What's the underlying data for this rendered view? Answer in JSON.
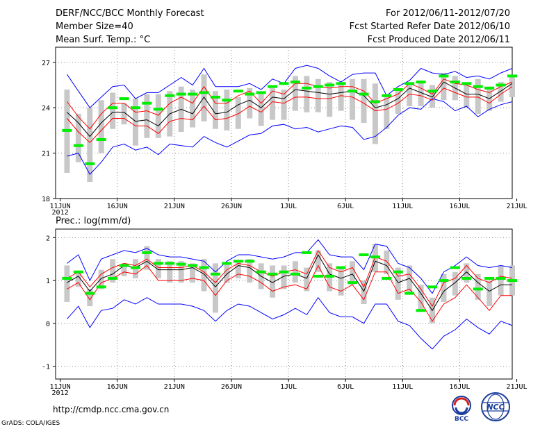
{
  "header": {
    "title": "DERF/NCC/BCC Monthly Forecast",
    "member_size": "Member Size=40",
    "variable": "Mean Surf. Temp.: °C",
    "period": "For 2012/06/11-2012/07/20",
    "start_date": "Fcst Started Refer Date 2012/06/10",
    "produced_date": "Fcst Produced Date 2012/06/11"
  },
  "footer": {
    "url": "http://cmdp.ncc.cma.gov.cn",
    "grads": "GrADS: COLA/IGES",
    "logo_left_text": "BCC",
    "logo_right_text": "NCC"
  },
  "colors": {
    "envelope": "#0000ff",
    "spread": "#ff0000",
    "mean": "#000000",
    "box": "#c8c8c8",
    "obs": "#00ee00",
    "grid": "#888888"
  },
  "chart_data": [
    {
      "type": "line",
      "title": "Mean Surf. Temp.: °C",
      "x_tick_labels": [
        "11JUN",
        "16JUN",
        "21JUN",
        "26JUN",
        "1JUL",
        "6JUL",
        "11JUL",
        "16JUL",
        "21JUL"
      ],
      "x_year_label": "2012",
      "ylim": [
        18,
        28
      ],
      "yticks": [
        18,
        21,
        24,
        27
      ],
      "days": 40,
      "series": [
        {
          "name": "max",
          "values": [
            26.2,
            25.1,
            24.0,
            24.7,
            25.4,
            25.5,
            24.6,
            25.0,
            25.0,
            25.5,
            26.0,
            25.5,
            26.6,
            25.4,
            25.4,
            25.4,
            25.6,
            25.2,
            25.9,
            25.6,
            26.6,
            26.8,
            26.6,
            26.1,
            25.7,
            26.2,
            26.3,
            26.3,
            24.8,
            25.4,
            25.8,
            26.6,
            26.3,
            26.2,
            26.4,
            26.0,
            26.1,
            25.9,
            26.3,
            26.6
          ]
        },
        {
          "name": "upper",
          "values": [
            24.4,
            23.4,
            22.6,
            23.6,
            24.3,
            24.3,
            23.7,
            23.8,
            23.5,
            24.3,
            24.7,
            24.3,
            25.4,
            24.3,
            24.3,
            24.8,
            25.1,
            24.3,
            25.1,
            24.9,
            25.6,
            25.6,
            25.4,
            25.3,
            25.4,
            25.4,
            25.1,
            24.3,
            24.6,
            24.9,
            25.6,
            25.3,
            24.9,
            25.9,
            25.6,
            25.5,
            25.2,
            25.0,
            25.4,
            25.7
          ]
        },
        {
          "name": "mean",
          "values": [
            23.7,
            23.0,
            22.1,
            23.0,
            23.7,
            23.7,
            23.1,
            23.2,
            22.8,
            23.6,
            23.9,
            23.6,
            24.7,
            23.6,
            23.7,
            24.2,
            24.5,
            24.0,
            24.7,
            24.6,
            25.2,
            25.1,
            25.0,
            24.9,
            25.0,
            25.1,
            24.8,
            24.0,
            24.2,
            24.6,
            25.3,
            25.0,
            24.7,
            25.7,
            25.3,
            24.9,
            24.9,
            24.6,
            25.1,
            25.6
          ]
        },
        {
          "name": "lower",
          "values": [
            23.3,
            22.4,
            21.7,
            22.5,
            23.3,
            23.3,
            22.8,
            22.8,
            22.3,
            23.1,
            23.3,
            23.2,
            24.1,
            23.2,
            23.3,
            23.6,
            24.1,
            23.7,
            24.4,
            24.3,
            24.7,
            24.7,
            24.6,
            24.6,
            24.8,
            24.7,
            24.3,
            23.8,
            23.9,
            24.3,
            24.9,
            24.8,
            24.5,
            25.3,
            25.0,
            24.7,
            24.7,
            24.3,
            24.9,
            25.4
          ]
        },
        {
          "name": "min",
          "values": [
            20.8,
            21.0,
            19.6,
            20.4,
            21.4,
            21.6,
            21.2,
            21.4,
            20.9,
            21.6,
            21.5,
            21.4,
            22.1,
            21.7,
            21.4,
            21.8,
            22.2,
            22.3,
            22.8,
            22.9,
            22.6,
            22.7,
            22.4,
            22.6,
            22.8,
            22.7,
            21.9,
            22.1,
            22.7,
            23.5,
            24.0,
            23.9,
            24.6,
            24.4,
            23.8,
            24.1,
            23.4,
            23.9,
            24.2,
            24.4
          ]
        },
        {
          "name": "box_top",
          "values": [
            25.2,
            23.6,
            24.0,
            24.5,
            25.0,
            24.3,
            24.6,
            24.9,
            24.9,
            25.1,
            25.4,
            25.2,
            26.2,
            25.1,
            25.2,
            24.7,
            25.3,
            24.9,
            25.3,
            25.2,
            26.1,
            26.1,
            25.9,
            25.7,
            25.7,
            25.9,
            25.9,
            25.6,
            24.8,
            25.1,
            25.6,
            25.8,
            25.5,
            26.3,
            26.1,
            25.5,
            25.9,
            25.4,
            25.7,
            26.0
          ]
        },
        {
          "name": "box_bottom",
          "values": [
            19.7,
            20.4,
            19.1,
            21.0,
            22.6,
            22.9,
            21.5,
            22.0,
            22.0,
            22.1,
            22.4,
            22.7,
            23.1,
            22.6,
            22.5,
            22.6,
            23.3,
            22.8,
            23.2,
            23.2,
            23.8,
            23.7,
            23.7,
            23.4,
            23.8,
            23.2,
            23.0,
            21.6,
            22.6,
            23.6,
            24.1,
            24.1,
            24.0,
            24.5,
            24.5,
            24.0,
            23.6,
            23.8,
            24.4,
            24.7
          ]
        },
        {
          "name": "observed",
          "values": [
            22.5,
            21.5,
            20.3,
            21.9,
            24.0,
            24.6,
            24.0,
            24.3,
            23.9,
            24.8,
            24.9,
            24.9,
            25.0,
            24.7,
            24.5,
            25.1,
            24.9,
            25.0,
            25.4,
            25.6,
            25.7,
            25.3,
            25.4,
            25.5,
            25.6,
            25.1,
            24.9,
            24.4,
            24.8,
            25.2,
            25.6,
            25.7,
            25.1,
            26.1,
            25.7,
            25.6,
            25.4,
            25.3,
            25.5,
            26.1
          ]
        }
      ]
    },
    {
      "type": "line",
      "title": "Prec.: log(mm/d)",
      "x_tick_labels": [
        "11JUN",
        "16JUN",
        "21JUN",
        "26JUN",
        "1JUL",
        "6JUL",
        "11JUL",
        "16JUL",
        "21JUL"
      ],
      "x_year_label": "2012",
      "ylim": [
        -1.3,
        2.2
      ],
      "yticks": [
        -1,
        0,
        1,
        2
      ],
      "days": 40,
      "series": [
        {
          "name": "max",
          "values": [
            1.4,
            1.6,
            1.0,
            1.5,
            1.6,
            1.7,
            1.65,
            1.75,
            1.6,
            1.55,
            1.55,
            1.5,
            1.45,
            1.2,
            1.45,
            1.6,
            1.6,
            1.55,
            1.5,
            1.55,
            1.65,
            1.65,
            1.95,
            1.6,
            1.55,
            1.55,
            1.25,
            1.85,
            1.8,
            1.4,
            1.3,
            1.05,
            0.7,
            1.2,
            1.35,
            1.55,
            1.35,
            1.3,
            1.35,
            1.3
          ]
        },
        {
          "name": "upper",
          "values": [
            1.05,
            1.2,
            0.85,
            1.15,
            1.3,
            1.4,
            1.35,
            1.5,
            1.3,
            1.3,
            1.3,
            1.35,
            1.2,
            0.95,
            1.25,
            1.4,
            1.35,
            1.2,
            1.1,
            1.2,
            1.25,
            1.15,
            1.7,
            1.3,
            1.2,
            1.3,
            0.85,
            1.55,
            1.45,
            1.1,
            1.15,
            0.8,
            0.4,
            0.95,
            1.05,
            1.35,
            1.05,
            0.95,
            1.1,
            1.05
          ]
        },
        {
          "name": "mean",
          "values": [
            0.95,
            1.1,
            0.75,
            1.05,
            1.15,
            1.35,
            1.3,
            1.45,
            1.25,
            1.25,
            1.25,
            1.3,
            1.15,
            0.85,
            1.15,
            1.35,
            1.3,
            1.1,
            0.95,
            1.1,
            1.15,
            1.05,
            1.6,
            1.15,
            1.05,
            1.15,
            0.75,
            1.45,
            1.35,
            0.95,
            1.05,
            0.7,
            0.3,
            0.75,
            0.95,
            1.2,
            0.95,
            0.75,
            0.9,
            0.9
          ]
        },
        {
          "name": "lower",
          "values": [
            0.8,
            0.95,
            0.55,
            0.95,
            1.05,
            1.2,
            1.15,
            1.35,
            1.0,
            1.0,
            1.0,
            1.05,
            1.0,
            0.65,
            1.0,
            1.15,
            1.1,
            0.95,
            0.75,
            0.85,
            0.9,
            0.8,
            1.35,
            0.85,
            0.75,
            0.9,
            0.55,
            1.2,
            1.2,
            0.7,
            0.8,
            0.5,
            0.05,
            0.45,
            0.6,
            0.9,
            0.6,
            0.3,
            0.65,
            0.65
          ]
        },
        {
          "name": "min",
          "values": [
            0.1,
            0.4,
            -0.1,
            0.3,
            0.35,
            0.55,
            0.45,
            0.6,
            0.45,
            0.45,
            0.45,
            0.4,
            0.3,
            0.05,
            0.3,
            0.45,
            0.4,
            0.25,
            0.1,
            0.2,
            0.35,
            0.2,
            0.6,
            0.25,
            0.15,
            0.15,
            0.0,
            0.45,
            0.45,
            0.05,
            -0.05,
            -0.35,
            -0.6,
            -0.3,
            -0.15,
            0.1,
            -0.1,
            -0.25,
            0.05,
            -0.05
          ]
        },
        {
          "name": "box_top",
          "values": [
            1.35,
            1.2,
            0.8,
            1.25,
            1.5,
            1.4,
            1.5,
            1.8,
            1.5,
            1.45,
            1.45,
            1.4,
            1.5,
            1.4,
            1.4,
            1.45,
            1.5,
            1.4,
            1.35,
            1.35,
            1.45,
            1.3,
            1.7,
            1.4,
            1.3,
            1.45,
            1.0,
            1.85,
            1.7,
            1.3,
            1.35,
            0.9,
            0.6,
            1.15,
            1.2,
            1.4,
            1.15,
            1.0,
            1.35,
            1.35
          ]
        },
        {
          "name": "box_bottom",
          "values": [
            0.5,
            0.85,
            0.4,
            0.8,
            0.95,
            1.1,
            1.05,
            1.25,
            1.05,
            0.95,
            0.95,
            0.95,
            0.75,
            0.25,
            0.95,
            1.05,
            0.95,
            0.8,
            0.6,
            0.8,
            0.95,
            0.75,
            1.2,
            0.75,
            0.65,
            0.9,
            0.45,
            1.2,
            1.15,
            0.55,
            0.7,
            0.3,
            0.0,
            0.5,
            0.65,
            0.95,
            0.55,
            0.4,
            0.65,
            0.65
          ]
        },
        {
          "name": "observed",
          "values": [
            1.05,
            1.2,
            0.7,
            0.85,
            1.05,
            1.35,
            1.3,
            1.65,
            1.4,
            1.4,
            1.38,
            1.35,
            1.3,
            1.15,
            1.4,
            1.45,
            1.45,
            1.2,
            1.15,
            1.2,
            1.15,
            1.65,
            1.1,
            1.1,
            1.3,
            0.95,
            1.6,
            1.55,
            1.05,
            1.2,
            0.7,
            0.3,
            0.85,
            1.0,
            1.3,
            1.05,
            0.8,
            1.05,
            1.05,
            1.0
          ]
        }
      ]
    }
  ]
}
